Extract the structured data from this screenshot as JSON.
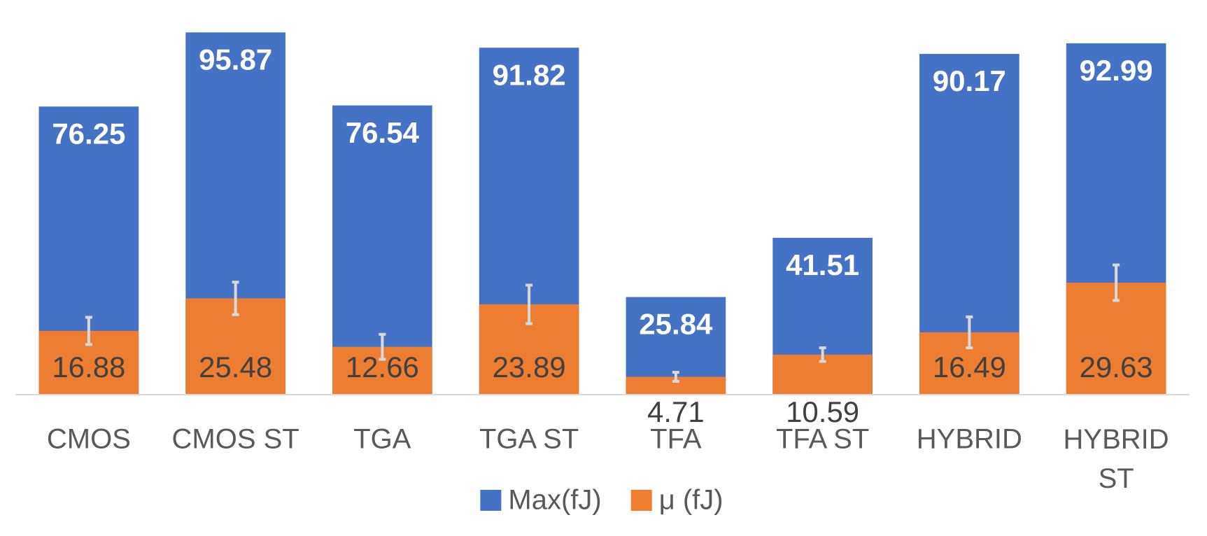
{
  "chart_data": {
    "type": "bar",
    "categories": [
      "CMOS",
      "CMOS ST",
      "TGA",
      "TGA ST",
      "TFA",
      "TFA ST",
      "HYBRID",
      "HYBRID ST"
    ],
    "series": [
      {
        "name": "Max(fJ)",
        "color": "#4472c4",
        "values": [
          76.25,
          95.87,
          76.54,
          91.82,
          25.84,
          41.51,
          90.17,
          92.99
        ]
      },
      {
        "name": "μ (fJ)",
        "color": "#ed7d31",
        "values": [
          16.88,
          25.48,
          12.66,
          23.89,
          4.71,
          10.59,
          16.49,
          29.63
        ],
        "errors": [
          3.6,
          4.3,
          3.3,
          5.1,
          1.2,
          1.8,
          4.1,
          4.7
        ]
      }
    ],
    "ylim": [
      0,
      100
    ],
    "overlap": true,
    "legend": "bottom"
  }
}
